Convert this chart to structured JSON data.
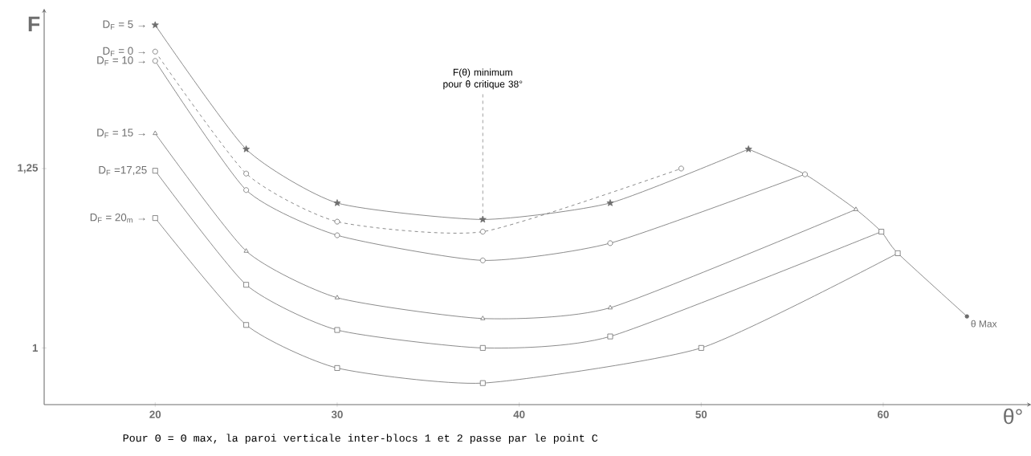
{
  "chart_data": {
    "type": "line",
    "xlabel": "θ°",
    "ylabel": "F",
    "xlim": [
      13.9,
      67.9
    ],
    "ylim": [
      0.921,
      1.467
    ],
    "xticks": [
      20,
      30,
      40,
      50,
      60
    ],
    "yticks": [
      1,
      {
        "value": 1.25,
        "label": "1,25"
      }
    ],
    "grid": false,
    "legend": false,
    "line_style": "solid",
    "series": [
      {
        "name": "D$_{F}$ = 5 →",
        "color": "#6e6e6e",
        "marker": "star",
        "x": [
          20,
          25,
          30,
          38,
          45,
          52.6
        ],
        "values": [
          1.45,
          1.277,
          1.202,
          1.179,
          1.202,
          1.277
        ]
      },
      {
        "name": "D$_{F}$ = 0 →",
        "color": "#6e6e6e",
        "marker": "circle",
        "line_style": "dashed",
        "x": [
          20,
          25,
          30,
          38,
          48.9
        ],
        "values": [
          1.413,
          1.243,
          1.176,
          1.162,
          1.25
        ]
      },
      {
        "name": "D$_{F}$ = 10 →",
        "color": "#6e6e6e",
        "marker": "circle",
        "x": [
          20,
          25,
          30,
          38,
          45,
          55.7
        ],
        "values": [
          1.4,
          1.22,
          1.157,
          1.122,
          1.146,
          1.242
        ]
      },
      {
        "name": "D$_{F}$ = 15 →",
        "color": "#6e6e6e",
        "marker": "triangle",
        "x": [
          20,
          25,
          30,
          38,
          45,
          58.5
        ],
        "values": [
          1.299,
          1.135,
          1.07,
          1.041,
          1.056,
          1.193
        ]
      },
      {
        "name": "D$_{F}$ =17,25",
        "color": "#6e6e6e",
        "marker": "square",
        "x": [
          20,
          25,
          30,
          38,
          45,
          59.9
        ],
        "values": [
          1.247,
          1.088,
          1.025,
          1.0,
          1.016,
          1.162
        ]
      },
      {
        "name": "D$_{F}$ = 20$_{m}$ →",
        "color": "#6e6e6e",
        "marker": "square",
        "x": [
          20,
          25,
          30,
          38,
          50,
          60.8
        ],
        "values": [
          1.181,
          1.032,
          0.972,
          0.951,
          1.0,
          1.132
        ]
      },
      {
        "color": "#6e6e6e",
        "marker": "none",
        "x": [
          52.6,
          55.7,
          58.5,
          59.9,
          60.8,
          64.6
        ],
        "values": [
          1.277,
          1.242,
          1.193,
          1.162,
          1.132,
          1.044
        ]
      }
    ],
    "annotations": [
      {
        "text": "F(θ) minimum pour θ critique 38°",
        "x": 38,
        "y": 1.179
      },
      {
        "text": "θ Max",
        "x": 64.6,
        "y": 1.044
      },
      "Pour Θ = Θ max, la paroi verticale inter-blocs 1 et 2 passe par le point C"
    ]
  }
}
